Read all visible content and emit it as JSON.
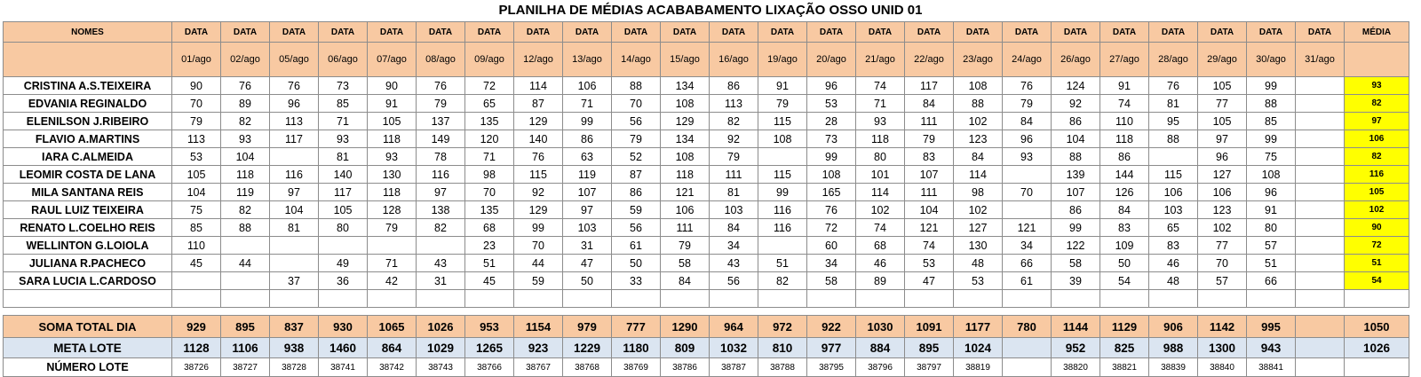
{
  "title": "PLANILHA DE MÉDIAS ACABABAMENTO LIXAÇÃO OSSO UNID 01",
  "header": {
    "names_label": "NOMES",
    "date_label": "DATA",
    "media_label": "MÉDIA",
    "dates": [
      "01/ago",
      "02/ago",
      "05/ago",
      "06/ago",
      "07/ago",
      "08/ago",
      "09/ago",
      "12/ago",
      "13/ago",
      "14/ago",
      "15/ago",
      "16/ago",
      "19/ago",
      "20/ago",
      "21/ago",
      "22/ago",
      "23/ago",
      "24/ago",
      "26/ago",
      "27/ago",
      "28/ago",
      "29/ago",
      "30/ago",
      "31/ago"
    ]
  },
  "rows": [
    {
      "name": "CRISTINA A.S.TEIXEIRA",
      "values": [
        "90",
        "76",
        "76",
        "73",
        "90",
        "76",
        "72",
        "114",
        "106",
        "88",
        "134",
        "86",
        "91",
        "96",
        "74",
        "117",
        "108",
        "76",
        "124",
        "91",
        "76",
        "105",
        "99",
        ""
      ],
      "media": "93"
    },
    {
      "name": "EDVANIA REGINALDO",
      "values": [
        "70",
        "89",
        "96",
        "85",
        "91",
        "79",
        "65",
        "87",
        "71",
        "70",
        "108",
        "113",
        "79",
        "53",
        "71",
        "84",
        "88",
        "79",
        "92",
        "74",
        "81",
        "77",
        "88",
        ""
      ],
      "media": "82"
    },
    {
      "name": "ELENILSON J.RIBEIRO",
      "values": [
        "79",
        "82",
        "113",
        "71",
        "105",
        "137",
        "135",
        "129",
        "99",
        "56",
        "129",
        "82",
        "115",
        "28",
        "93",
        "111",
        "102",
        "84",
        "86",
        "110",
        "95",
        "105",
        "85",
        ""
      ],
      "media": "97"
    },
    {
      "name": "FLAVIO A.MARTINS",
      "values": [
        "113",
        "93",
        "117",
        "93",
        "118",
        "149",
        "120",
        "140",
        "86",
        "79",
        "134",
        "92",
        "108",
        "73",
        "118",
        "79",
        "123",
        "96",
        "104",
        "118",
        "88",
        "97",
        "99",
        ""
      ],
      "media": "106"
    },
    {
      "name": "IARA C.ALMEIDA",
      "values": [
        "53",
        "104",
        "",
        "81",
        "93",
        "78",
        "71",
        "76",
        "63",
        "52",
        "108",
        "79",
        "",
        "99",
        "80",
        "83",
        "84",
        "93",
        "88",
        "86",
        "",
        "96",
        "75",
        ""
      ],
      "media": "82"
    },
    {
      "name": "LEOMIR COSTA DE LANA",
      "values": [
        "105",
        "118",
        "116",
        "140",
        "130",
        "116",
        "98",
        "115",
        "119",
        "87",
        "118",
        "111",
        "115",
        "108",
        "101",
        "107",
        "114",
        "",
        "139",
        "144",
        "115",
        "127",
        "108",
        ""
      ],
      "media": "116"
    },
    {
      "name": "MILA SANTANA REIS",
      "values": [
        "104",
        "119",
        "97",
        "117",
        "118",
        "97",
        "70",
        "92",
        "107",
        "86",
        "121",
        "81",
        "99",
        "165",
        "114",
        "111",
        "98",
        "70",
        "107",
        "126",
        "106",
        "106",
        "96",
        ""
      ],
      "media": "105"
    },
    {
      "name": "RAUL LUIZ TEIXEIRA",
      "values": [
        "75",
        "82",
        "104",
        "105",
        "128",
        "138",
        "135",
        "129",
        "97",
        "59",
        "106",
        "103",
        "116",
        "76",
        "102",
        "104",
        "102",
        "",
        "86",
        "84",
        "103",
        "123",
        "91",
        ""
      ],
      "media": "102"
    },
    {
      "name": "RENATO L.COELHO REIS",
      "values": [
        "85",
        "88",
        "81",
        "80",
        "79",
        "82",
        "68",
        "99",
        "103",
        "56",
        "111",
        "84",
        "116",
        "72",
        "74",
        "121",
        "127",
        "121",
        "99",
        "83",
        "65",
        "102",
        "80",
        ""
      ],
      "media": "90"
    },
    {
      "name": "WELLINTON G.LOIOLA",
      "values": [
        "110",
        "",
        "",
        "",
        "",
        "",
        "23",
        "70",
        "31",
        "61",
        "79",
        "34",
        "",
        "60",
        "68",
        "74",
        "130",
        "34",
        "122",
        "109",
        "83",
        "77",
        "57",
        ""
      ],
      "media": "72"
    },
    {
      "name": "JULIANA R.PACHECO",
      "values": [
        "45",
        "44",
        "",
        "49",
        "71",
        "43",
        "51",
        "44",
        "47",
        "50",
        "58",
        "43",
        "51",
        "34",
        "46",
        "53",
        "48",
        "66",
        "58",
        "50",
        "46",
        "70",
        "51",
        ""
      ],
      "media": "51"
    },
    {
      "name": "SARA LUCIA L.CARDOSO",
      "values": [
        "",
        "",
        "37",
        "36",
        "42",
        "31",
        "45",
        "59",
        "50",
        "33",
        "84",
        "56",
        "82",
        "58",
        "89",
        "47",
        "53",
        "61",
        "39",
        "54",
        "48",
        "57",
        "66",
        ""
      ],
      "media": "54"
    },
    {
      "name": "",
      "values": [
        "",
        "",
        "",
        "",
        "",
        "",
        "",
        "",
        "",
        "",
        "",
        "",
        "",
        "",
        "",
        "",
        "",
        "",
        "",
        "",
        "",
        "",
        "",
        ""
      ],
      "media": ""
    }
  ],
  "soma": {
    "label": "SOMA TOTAL DIA",
    "values": [
      "929",
      "895",
      "837",
      "930",
      "1065",
      "1026",
      "953",
      "1154",
      "979",
      "777",
      "1290",
      "964",
      "972",
      "922",
      "1030",
      "1091",
      "1177",
      "780",
      "1144",
      "1129",
      "906",
      "1142",
      "995",
      ""
    ],
    "media": "1050"
  },
  "meta": {
    "label": "META LOTE",
    "values": [
      "1128",
      "1106",
      "938",
      "1460",
      "864",
      "1029",
      "1265",
      "923",
      "1229",
      "1180",
      "809",
      "1032",
      "810",
      "977",
      "884",
      "895",
      "1024",
      "",
      "952",
      "825",
      "988",
      "1300",
      "943",
      ""
    ],
    "media": "1026"
  },
  "lote": {
    "label": "NÚMERO LOTE",
    "values": [
      "38726",
      "38727",
      "38728",
      "38741",
      "38742",
      "38743",
      "38766",
      "38767",
      "38768",
      "38769",
      "38786",
      "38787",
      "38788",
      "38795",
      "38796",
      "38797",
      "38819",
      "",
      "38820",
      "38821",
      "38839",
      "38840",
      "38841",
      ""
    ],
    "media": ""
  },
  "colors": {
    "header_bg": "#f8c9a2",
    "media_highlight": "#ffff00",
    "meta_bg": "#dbe5f1"
  }
}
